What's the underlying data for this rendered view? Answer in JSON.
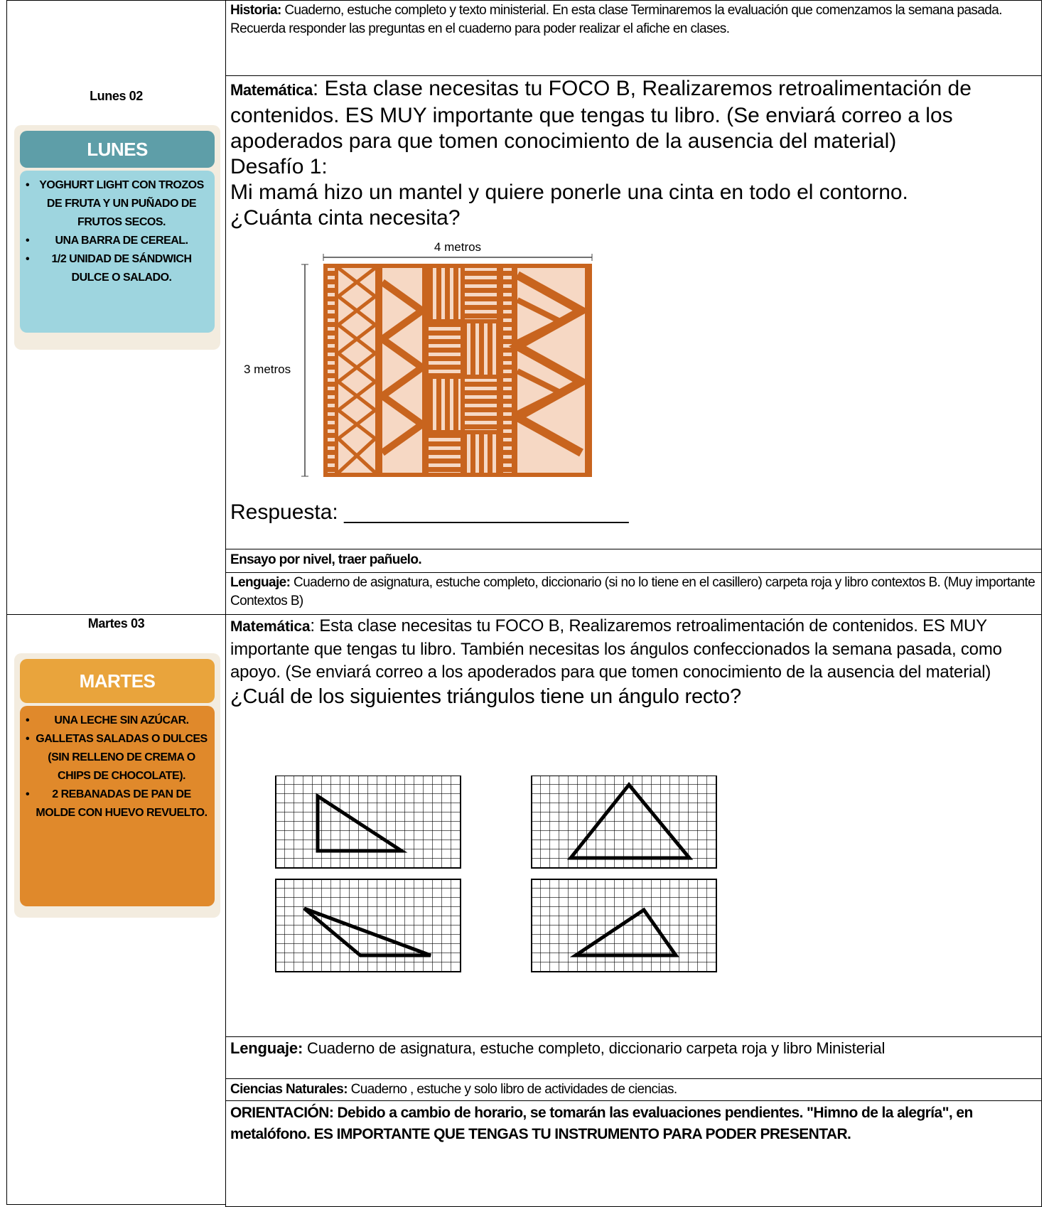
{
  "days": [
    {
      "label": "Lunes 02",
      "card": {
        "title": "LUNES",
        "items": [
          "YOGHURT LIGHT CON TROZOS DE FRUTA Y UN PUÑADO DE FRUTOS SECOS.",
          "UNA BARRA DE CEREAL.",
          "1/2 UNIDAD DE SÁNDWICH DULCE O SALADO."
        ]
      },
      "subjects": [
        {
          "label": "Historia:",
          "text": " Cuaderno, estuche completo y texto ministerial.  En esta clase  Terminaremos la evaluación que comenzamos la semana pasada. Recuerda responder las preguntas en el cuaderno para poder realizar el afiche en clases."
        },
        {
          "label": "Matemática",
          "text": ": Esta clase necesitas tu FOCO B, Realizaremos retroalimentación de contenidos. ES MUY importante que tengas tu libro.  (Se enviará correo a los apoderados para que tomen conocimiento de la ausencia del material)",
          "challenge": "Desafío 1:",
          "question": "Mi mamá hizo un mantel y quiere ponerle una cinta en todo el contorno.",
          "question2": "¿Cuánta cinta necesita?",
          "width_label": "4 metros",
          "height_label": "3 metros",
          "answer": "Respuesta: ________________________"
        },
        {
          "label": "Ensayo por nivel, traer pañuelo."
        },
        {
          "label": "Lenguaje:",
          "text": "   Cuaderno de asignatura, estuche completo, diccionario (si no lo tiene en el casillero) carpeta roja y libro contextos B. (Muy importante Contextos B)"
        }
      ]
    },
    {
      "label": "Martes 03",
      "card": {
        "title": "MARTES",
        "items": [
          "UNA LECHE SIN AZÚCAR.",
          "GALLETAS SALADAS O DULCES (SIN RELLENO DE CREMA O CHIPS DE CHOCOLATE).",
          "2 REBANADAS DE PAN DE MOLDE CON HUEVO REVUELTO."
        ]
      },
      "subjects": [
        {
          "label": "Matemática",
          "text": ":  Esta clase necesitas tu FOCO B, Realizaremos retroalimentación de contenidos. ES MUY importante que tengas tu libro. También necesitas los ángulos confeccionados la semana pasada, como apoyo. (Se enviará correo a los apoderados para que tomen conocimiento de la ausencia del material)",
          "question": "¿Cuál de los siguientes triángulos tiene un ángulo recto?"
        },
        {
          "label": "Lenguaje:",
          "text": "  Cuaderno de asignatura, estuche completo, diccionario carpeta roja y libro Ministerial"
        },
        {
          "label": "Ciencias Naturales:",
          "text": " Cuaderno , estuche y solo libro de actividades de ciencias."
        },
        {
          "label": "ORIENTACIÓN: Debido a cambio de horario, se tomarán las evaluaciones pendientes. \"Himno de la alegría\", en metalófono. ES IMPORTANTE QUE TENGAS TU INSTRUMENTO PARA PODER PRESENTAR."
        }
      ]
    }
  ]
}
